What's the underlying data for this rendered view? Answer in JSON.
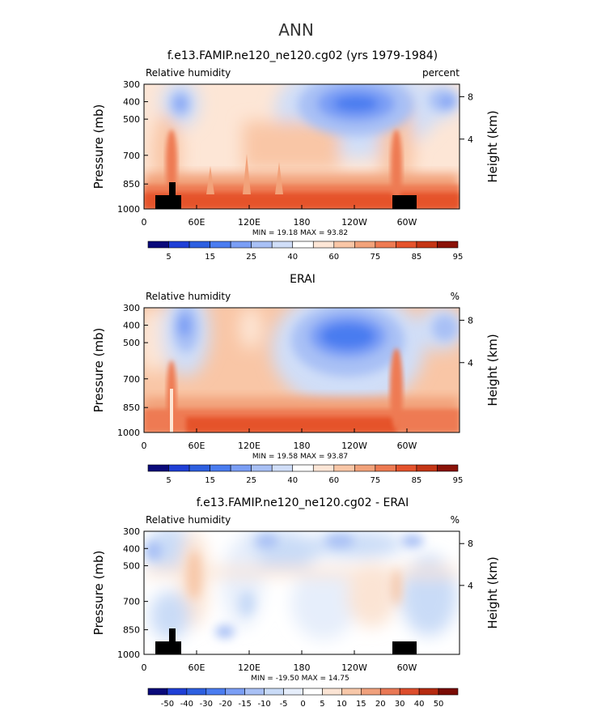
{
  "page": {
    "title": "ANN"
  },
  "colors": {
    "rh_scale": [
      "#0a0a7a",
      "#1f3fd6",
      "#2d5fe0",
      "#4a7cf0",
      "#7a9ef5",
      "#a8c0f5",
      "#d0def8",
      "#ffffff",
      "#fde6d6",
      "#f9c6a6",
      "#f2a27a",
      "#ee7a52",
      "#e5532c",
      "#c43515",
      "#8a1208"
    ],
    "diff_scale": [
      "#0a0a7a",
      "#1f3fd6",
      "#2d5fe0",
      "#4a7cf0",
      "#7a9ef5",
      "#a8c0f5",
      "#c9dbf7",
      "#e6eefb",
      "#ffffff",
      "#fbe4d4",
      "#f7c7a8",
      "#f0a07c",
      "#e97855",
      "#dd4d2c",
      "#b52a10",
      "#7a0c05"
    ],
    "terrain": "#000000"
  },
  "chart_data": [
    {
      "type": "heatmap",
      "title": "f.e13.FAMIP.ne120_ne120.cg02 (yrs 1979-1984)",
      "left_label": "Relative humidity",
      "right_label": "percent",
      "ylabel": "Pressure (mb)",
      "y2label": "Height (km)",
      "y_ticks": [
        "300",
        "400",
        "500",
        "700",
        "850",
        "1000"
      ],
      "y2_ticks": [
        "8",
        "4"
      ],
      "x_ticks": [
        "0",
        "60E",
        "120E",
        "180",
        "120W",
        "60W"
      ],
      "stats_text": "MIN =   19.18   MAX =   93.82",
      "min": 19.18,
      "max": 93.82,
      "colorbar_labels": [
        "5",
        "15",
        "25",
        "40",
        "60",
        "75",
        "85",
        "95"
      ],
      "colorbar_levels": [
        0,
        5,
        10,
        15,
        20,
        25,
        30,
        40,
        50,
        60,
        70,
        75,
        80,
        85,
        90,
        95,
        100
      ]
    },
    {
      "type": "heatmap",
      "title": "ERAI",
      "left_label": "Relative humidity",
      "right_label": "%",
      "ylabel": "Pressure (mb)",
      "y2label": "Height (km)",
      "y_ticks": [
        "300",
        "400",
        "500",
        "700",
        "850",
        "1000"
      ],
      "y2_ticks": [
        "8",
        "4"
      ],
      "x_ticks": [
        "0",
        "60E",
        "120E",
        "180",
        "120W",
        "60W"
      ],
      "stats_text": "MIN =   19.58   MAX =   93.87",
      "min": 19.58,
      "max": 93.87,
      "colorbar_labels": [
        "5",
        "15",
        "25",
        "40",
        "60",
        "75",
        "85",
        "95"
      ],
      "colorbar_levels": [
        0,
        5,
        10,
        15,
        20,
        25,
        30,
        40,
        50,
        60,
        70,
        75,
        80,
        85,
        90,
        95,
        100
      ]
    },
    {
      "type": "heatmap",
      "title": "f.e13.FAMIP.ne120_ne120.cg02 - ERAI",
      "left_label": "Relative humidity",
      "right_label": "%",
      "ylabel": "Pressure (mb)",
      "y2label": "Height (km)",
      "y_ticks": [
        "300",
        "400",
        "500",
        "700",
        "850",
        "1000"
      ],
      "y2_ticks": [
        "8",
        "4"
      ],
      "x_ticks": [
        "0",
        "60E",
        "120E",
        "180",
        "120W",
        "60W"
      ],
      "stats_text": "MIN = -19.50   MAX =   14.75",
      "min": -19.5,
      "max": 14.75,
      "colorbar_labels": [
        "-50",
        "-40",
        "-30",
        "-20",
        "-15",
        "-10",
        "-5",
        "0",
        "5",
        "10",
        "15",
        "20",
        "30",
        "40",
        "50"
      ],
      "colorbar_levels": [
        -50,
        -40,
        -30,
        -20,
        -15,
        -10,
        -5,
        0,
        5,
        10,
        15,
        20,
        30,
        40,
        50
      ]
    }
  ]
}
